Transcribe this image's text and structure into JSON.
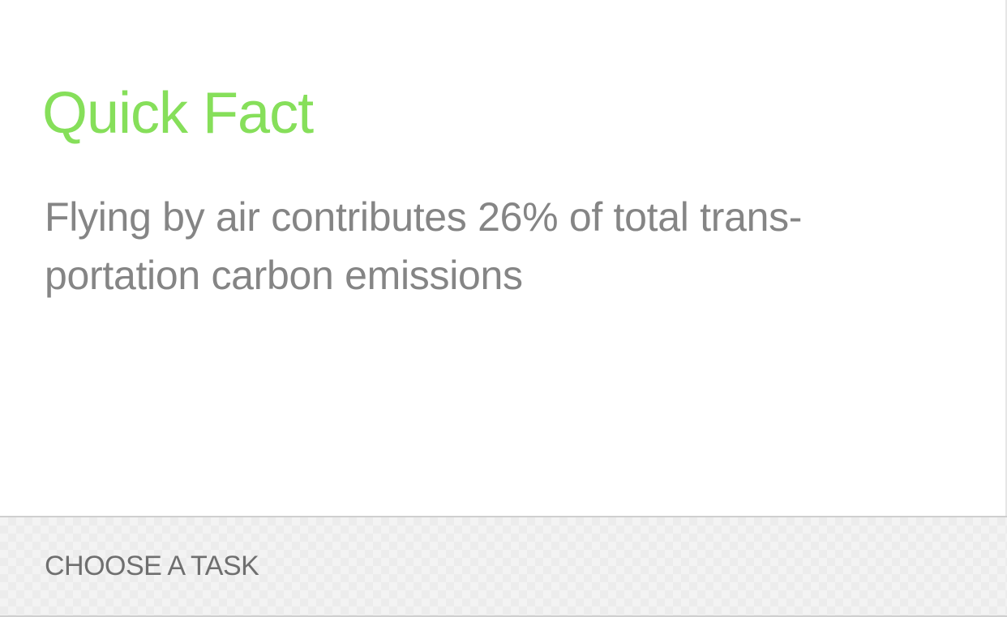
{
  "colors": {
    "title": "#86df5a",
    "fact_text": "#858585",
    "footer_text": "#6f6f6f"
  },
  "card": {
    "title": "Quick Fact",
    "fact_line_1": "Flying by air contributes 26% of total trans-",
    "fact_line_2": "portation carbon emissions"
  },
  "footer": {
    "label": "CHOOSE A TASK"
  }
}
